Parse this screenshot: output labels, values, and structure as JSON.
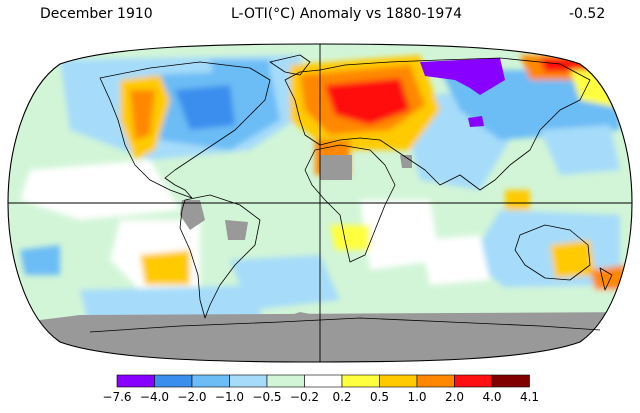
{
  "header": {
    "date": "December 1910",
    "title": "L-OTI(°C) Anomaly vs 1880-1974",
    "global_mean": "-0.52"
  },
  "map": {
    "projection": "Robinson",
    "grid_lines": [
      "equator",
      "prime-meridian"
    ],
    "no_data_color": "#999999",
    "background_color": "#ffffff",
    "coastline_color": "#000000"
  },
  "legend": {
    "ticks": [
      "−7.6",
      "−4.0",
      "−2.0",
      "−1.0",
      "−0.5",
      "−0.2",
      "0.2",
      "0.5",
      "1.0",
      "2.0",
      "4.0",
      "4.1"
    ],
    "bins": [
      {
        "range": "-7.6 to -4.0",
        "color": "#8800ff"
      },
      {
        "range": "-4.0 to -2.0",
        "color": "#3a8eee"
      },
      {
        "range": "-2.0 to -1.0",
        "color": "#6cbcf5"
      },
      {
        "range": "-1.0 to -0.5",
        "color": "#a6dcfa"
      },
      {
        "range": "-0.5 to -0.2",
        "color": "#d2f5d7"
      },
      {
        "range": "-0.2 to 0.2",
        "color": "#ffffff"
      },
      {
        "range": "0.2 to 0.5",
        "color": "#ffff40"
      },
      {
        "range": "0.5 to 1.0",
        "color": "#ffca00"
      },
      {
        "range": "1.0 to 2.0",
        "color": "#ff8800"
      },
      {
        "range": "2.0 to 4.0",
        "color": "#ff1010"
      },
      {
        "range": "4.0 to 4.1",
        "color": "#800000"
      }
    ]
  }
}
